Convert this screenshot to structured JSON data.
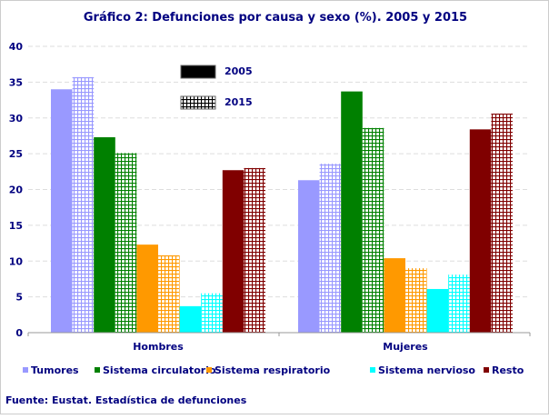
{
  "chart_data": {
    "type": "bar",
    "title": "Gráfico 2: Defunciones por causa y sexo (%). 2005 y 2015",
    "categories": [
      "Hombres",
      "Mujeres"
    ],
    "years": [
      "2005",
      "2015"
    ],
    "ylim": [
      0,
      40
    ],
    "yticks": [
      "0",
      "5",
      "10",
      "15",
      "20",
      "25",
      "30",
      "35",
      "40"
    ],
    "grid": true,
    "series": [
      {
        "name": "Tumores",
        "color": "#9999ff",
        "values_2005": [
          34.0,
          21.3
        ],
        "values_2015": [
          35.7,
          23.6
        ]
      },
      {
        "name": "Sistema  circulatorio",
        "color": "#008000",
        "values_2005": [
          27.3,
          33.7
        ],
        "values_2015": [
          25.1,
          28.6
        ]
      },
      {
        "name": "Sistema respiratorio",
        "color": "#ff9900",
        "values_2005": [
          12.3,
          10.4
        ],
        "values_2015": [
          10.8,
          9.0
        ]
      },
      {
        "name": "Sistema nervioso",
        "color": "#00ffff",
        "values_2005": [
          3.7,
          6.1
        ],
        "values_2015": [
          5.5,
          8.1
        ]
      },
      {
        "name": "Resto",
        "color": "#800000",
        "values_2005": [
          22.7,
          28.4
        ],
        "values_2015": [
          23.0,
          30.6
        ]
      }
    ],
    "legend_placement": "bottom",
    "source": "Fuente: Eustat. Estadística de defunciones"
  }
}
